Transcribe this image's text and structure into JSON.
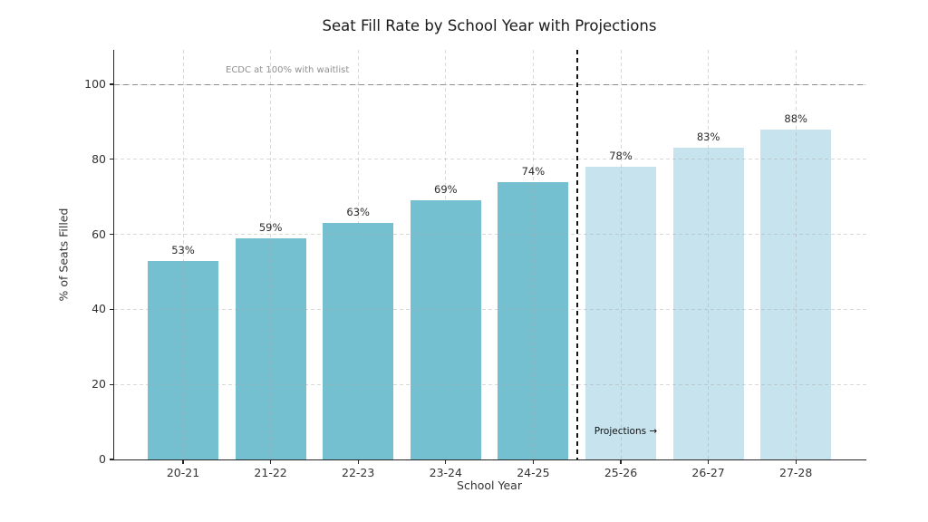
{
  "chart_data": {
    "type": "bar",
    "title": "Seat Fill Rate by School Year with Projections",
    "xlabel": "School Year",
    "ylabel": "% of Seats Filled",
    "categories": [
      "20-21",
      "21-22",
      "22-23",
      "23-24",
      "24-25",
      "25-26",
      "26-27",
      "27-28"
    ],
    "values": [
      53,
      59,
      63,
      69,
      74,
      78,
      83,
      88
    ],
    "bars": [
      {
        "category": "20-21",
        "value": 53,
        "label": "53%",
        "segment": "actual"
      },
      {
        "category": "21-22",
        "value": 59,
        "label": "59%",
        "segment": "actual"
      },
      {
        "category": "22-23",
        "value": 63,
        "label": "63%",
        "segment": "actual"
      },
      {
        "category": "23-24",
        "value": 69,
        "label": "69%",
        "segment": "actual"
      },
      {
        "category": "24-25",
        "value": 74,
        "label": "74%",
        "segment": "actual"
      },
      {
        "category": "25-26",
        "value": 78,
        "label": "78%",
        "segment": "projected"
      },
      {
        "category": "26-27",
        "value": 83,
        "label": "83%",
        "segment": "projected"
      },
      {
        "category": "27-28",
        "value": 88,
        "label": "88%",
        "segment": "projected"
      }
    ],
    "colors": {
      "actual": "#74bfd0",
      "projected": "#c7e3ee"
    },
    "yticks": [
      0,
      20,
      40,
      60,
      80,
      100
    ],
    "ylim": [
      0,
      109
    ],
    "grid": true,
    "legend": "none",
    "reference_line": {
      "y": 100,
      "label": "ECDC at 100% with waitlist",
      "style": "dashed",
      "color": "#8f8f8f"
    },
    "divider": {
      "after_category": "24-25",
      "label": "Projections →",
      "style": "dashed",
      "color": "#141414"
    }
  }
}
